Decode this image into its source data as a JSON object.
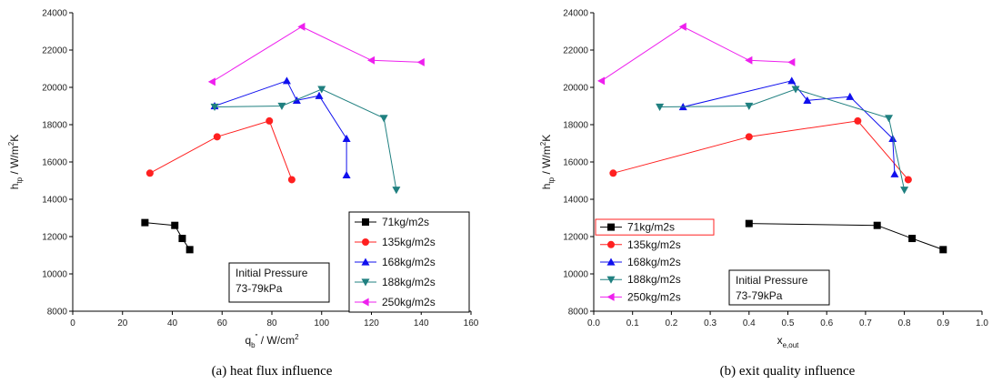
{
  "chart_data": [
    {
      "type": "line",
      "caption": "(a) heat flux influence",
      "xlabel_main": "q",
      "xlabel_sub": "b",
      "xlabel_sup": "\"",
      "xlabel_rest": " / W/cm",
      "xlabel_unit_sup": "2",
      "ylabel_main": "h",
      "ylabel_sub": "tp",
      "ylabel_rest": " / W/m",
      "ylabel_unit_sup": "2",
      "ylabel_tail": "K",
      "xlim": [
        0,
        160
      ],
      "ylim": [
        8000,
        24000
      ],
      "xticks": [
        0,
        20,
        40,
        60,
        80,
        100,
        120,
        140,
        160
      ],
      "yticks": [
        8000,
        10000,
        12000,
        14000,
        16000,
        18000,
        20000,
        22000,
        24000
      ],
      "legend_position": "bottom-right",
      "annotation": [
        "Initial Pressure",
        "73-79kPa"
      ],
      "series": [
        {
          "name": "71kg/m2s",
          "color": "#000000",
          "marker": "square",
          "x": [
            29,
            41,
            44,
            47
          ],
          "y": [
            12750,
            12600,
            11900,
            11300
          ]
        },
        {
          "name": "135kg/m2s",
          "color": "#ff2020",
          "marker": "circle",
          "x": [
            31,
            58,
            79,
            88
          ],
          "y": [
            15400,
            17350,
            18200,
            15050
          ]
        },
        {
          "name": "168kg/m2s",
          "color": "#1010ee",
          "marker": "triangle-up",
          "x": [
            57,
            86,
            90,
            99,
            110,
            110
          ],
          "y": [
            19000,
            20350,
            19300,
            19550,
            17250,
            15300
          ]
        },
        {
          "name": "188kg/m2s",
          "color": "#208080",
          "marker": "triangle-down",
          "x": [
            57,
            84,
            100,
            125,
            130
          ],
          "y": [
            18950,
            19000,
            19900,
            18350,
            14500
          ]
        },
        {
          "name": "250kg/m2s",
          "color": "#ee20ee",
          "marker": "triangle-left",
          "x": [
            56,
            92,
            120,
            140
          ],
          "y": [
            20300,
            23250,
            21450,
            21350
          ]
        }
      ]
    },
    {
      "type": "line",
      "caption": "(b) exit quality influence",
      "xlabel_main": "x",
      "xlabel_sub": "e,out",
      "ylabel_main": "h",
      "ylabel_sub": "tp",
      "ylabel_rest": " / W/m",
      "ylabel_unit_sup": "2",
      "ylabel_tail": "K",
      "xlim": [
        0.0,
        1.0
      ],
      "ylim": [
        8000,
        24000
      ],
      "xticks": [
        "0.0",
        "0.1",
        "0.2",
        "0.3",
        "0.4",
        "0.5",
        "0.6",
        "0.7",
        "0.8",
        "0.9",
        "1.0"
      ],
      "yticks": [
        8000,
        10000,
        12000,
        14000,
        16000,
        18000,
        20000,
        22000,
        24000
      ],
      "legend_position": "bottom-left",
      "annotation": [
        "Initial Pressure",
        "73-79kPa"
      ],
      "series": [
        {
          "name": "71kg/m2s",
          "color": "#000000",
          "marker": "square",
          "x": [
            0.4,
            0.73,
            0.82,
            0.9
          ],
          "y": [
            12700,
            12600,
            11900,
            11300
          ]
        },
        {
          "name": "135kg/m2s",
          "color": "#ff2020",
          "marker": "circle",
          "x": [
            0.05,
            0.4,
            0.68,
            0.81
          ],
          "y": [
            15400,
            17350,
            18200,
            15050
          ]
        },
        {
          "name": "168kg/m2s",
          "color": "#1010ee",
          "marker": "triangle-up",
          "x": [
            0.23,
            0.51,
            0.55,
            0.66,
            0.77,
            0.775
          ],
          "y": [
            18950,
            20350,
            19300,
            19500,
            17250,
            15350
          ]
        },
        {
          "name": "188kg/m2s",
          "color": "#208080",
          "marker": "triangle-down",
          "x": [
            0.17,
            0.4,
            0.52,
            0.76,
            0.8
          ],
          "y": [
            18950,
            19000,
            19900,
            18350,
            14500
          ]
        },
        {
          "name": "250kg/m2s",
          "color": "#ee20ee",
          "marker": "triangle-left",
          "x": [
            0.02,
            0.23,
            0.4,
            0.51
          ],
          "y": [
            20350,
            23250,
            21450,
            21350
          ]
        }
      ]
    }
  ]
}
